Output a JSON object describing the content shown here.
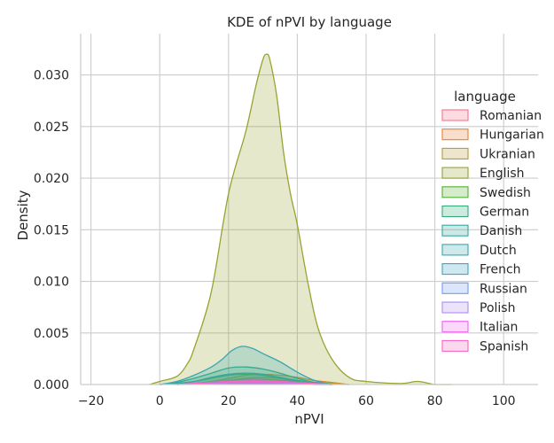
{
  "chart_data": {
    "type": "area",
    "title": "KDE of nPVI by language",
    "xlabel": "nPVI",
    "ylabel": "Density",
    "xlim": [
      -23,
      110
    ],
    "ylim": [
      0,
      0.034
    ],
    "xticks": [
      -20,
      0,
      20,
      40,
      60,
      80,
      100
    ],
    "yticks": [
      0.0,
      0.005,
      0.01,
      0.015,
      0.02,
      0.025,
      0.03
    ],
    "xtick_labels": [
      "−20",
      "0",
      "20",
      "40",
      "60",
      "80",
      "100"
    ],
    "ytick_labels": [
      "0.000",
      "0.005",
      "0.010",
      "0.015",
      "0.020",
      "0.025",
      "0.030"
    ],
    "grid": true,
    "legend": {
      "title": "language",
      "placement": "right"
    },
    "series": [
      {
        "name": "Romanian",
        "color": "#f77189",
        "x": [
          5,
          10,
          15,
          20,
          25,
          30,
          35,
          40,
          45,
          50,
          55
        ],
        "values": [
          0.0,
          0.0001,
          0.0002,
          0.0004,
          0.0005,
          0.0005,
          0.0004,
          0.0003,
          0.0002,
          0.0001,
          0.0
        ]
      },
      {
        "name": "Hungarian",
        "color": "#e7812e",
        "x": [
          5,
          10,
          15,
          20,
          25,
          30,
          35,
          40,
          45,
          50,
          55
        ],
        "values": [
          0.0,
          0.0001,
          0.0003,
          0.0006,
          0.0009,
          0.001,
          0.0009,
          0.0007,
          0.0004,
          0.0002,
          0.0
        ]
      },
      {
        "name": "Ukranian",
        "color": "#ba9a32",
        "x": [
          5,
          10,
          15,
          20,
          25,
          30,
          35,
          40,
          45,
          50,
          55
        ],
        "values": [
          0.0,
          0.0001,
          0.0002,
          0.0004,
          0.0006,
          0.0007,
          0.0006,
          0.0004,
          0.0002,
          0.0001,
          0.0
        ]
      },
      {
        "name": "English",
        "color": "#98a331",
        "x": [
          -3,
          0,
          5,
          8,
          10,
          15,
          20,
          25,
          28,
          30,
          31,
          32,
          34,
          36,
          38,
          40,
          43,
          46,
          50,
          55,
          60,
          70,
          75,
          80,
          85
        ],
        "values": [
          0.0,
          0.0003,
          0.0008,
          0.002,
          0.0035,
          0.009,
          0.0185,
          0.0245,
          0.029,
          0.0315,
          0.032,
          0.0315,
          0.028,
          0.0225,
          0.0185,
          0.0155,
          0.01,
          0.0055,
          0.0025,
          0.0007,
          0.0003,
          0.0001,
          0.0003,
          0.0,
          0.0
        ]
      },
      {
        "name": "Swedish",
        "color": "#52b032",
        "x": [
          0,
          5,
          10,
          15,
          20,
          25,
          30,
          35,
          40,
          45,
          50
        ],
        "values": [
          0.0,
          0.0001,
          0.0003,
          0.0006,
          0.0009,
          0.001,
          0.0009,
          0.0006,
          0.0003,
          0.0001,
          0.0
        ]
      },
      {
        "name": "German",
        "color": "#35ab7a",
        "x": [
          0,
          5,
          10,
          15,
          20,
          25,
          30,
          35,
          40,
          45,
          50
        ],
        "values": [
          0.0,
          0.0002,
          0.0006,
          0.0011,
          0.0016,
          0.0017,
          0.0015,
          0.0011,
          0.0006,
          0.0002,
          0.0
        ]
      },
      {
        "name": "Danish",
        "color": "#37a79f",
        "x": [
          0,
          5,
          10,
          15,
          20,
          25,
          30,
          35,
          40,
          45,
          50
        ],
        "values": [
          0.0,
          0.0001,
          0.0003,
          0.0007,
          0.001,
          0.0011,
          0.001,
          0.0007,
          0.0004,
          0.0001,
          0.0
        ]
      },
      {
        "name": "Dutch",
        "color": "#39a7b2",
        "x": [
          0,
          5,
          10,
          15,
          18,
          21,
          24,
          27,
          30,
          35,
          40,
          45,
          50
        ],
        "values": [
          0.0,
          0.0003,
          0.0009,
          0.0017,
          0.0024,
          0.0033,
          0.0037,
          0.0035,
          0.003,
          0.0022,
          0.0012,
          0.0004,
          0.0
        ]
      },
      {
        "name": "French",
        "color": "#3aa5c8",
        "x": [
          5,
          10,
          15,
          20,
          25,
          30,
          35,
          40,
          45,
          50
        ],
        "values": [
          0.0,
          0.0001,
          0.0002,
          0.0003,
          0.0004,
          0.0004,
          0.0003,
          0.0002,
          0.0001,
          0.0
        ]
      },
      {
        "name": "Russian",
        "color": "#6e9bf4",
        "x": [
          5,
          10,
          15,
          20,
          25,
          30,
          35,
          40,
          45,
          50
        ],
        "values": [
          0.0,
          0.0001,
          0.0002,
          0.0003,
          0.0003,
          0.0003,
          0.0002,
          0.0001,
          0.0,
          0.0
        ]
      },
      {
        "name": "Polish",
        "color": "#ae8cf4",
        "x": [
          5,
          10,
          15,
          20,
          25,
          30,
          35,
          40,
          45,
          50
        ],
        "values": [
          0.0,
          0.0001,
          0.0001,
          0.0002,
          0.0002,
          0.0002,
          0.0002,
          0.0001,
          0.0,
          0.0
        ]
      },
      {
        "name": "Italian",
        "color": "#f05ff0",
        "x": [
          5,
          10,
          15,
          20,
          25,
          30,
          35,
          40,
          45,
          50
        ],
        "values": [
          0.0,
          0.0001,
          0.0002,
          0.0003,
          0.0004,
          0.0004,
          0.0003,
          0.0002,
          0.0001,
          0.0
        ]
      },
      {
        "name": "Spanish",
        "color": "#f565c1",
        "x": [
          5,
          10,
          15,
          20,
          25,
          30,
          35,
          40,
          45,
          50
        ],
        "values": [
          0.0,
          0.0001,
          0.0002,
          0.0003,
          0.0003,
          0.0003,
          0.0003,
          0.0002,
          0.0001,
          0.0
        ]
      }
    ]
  }
}
